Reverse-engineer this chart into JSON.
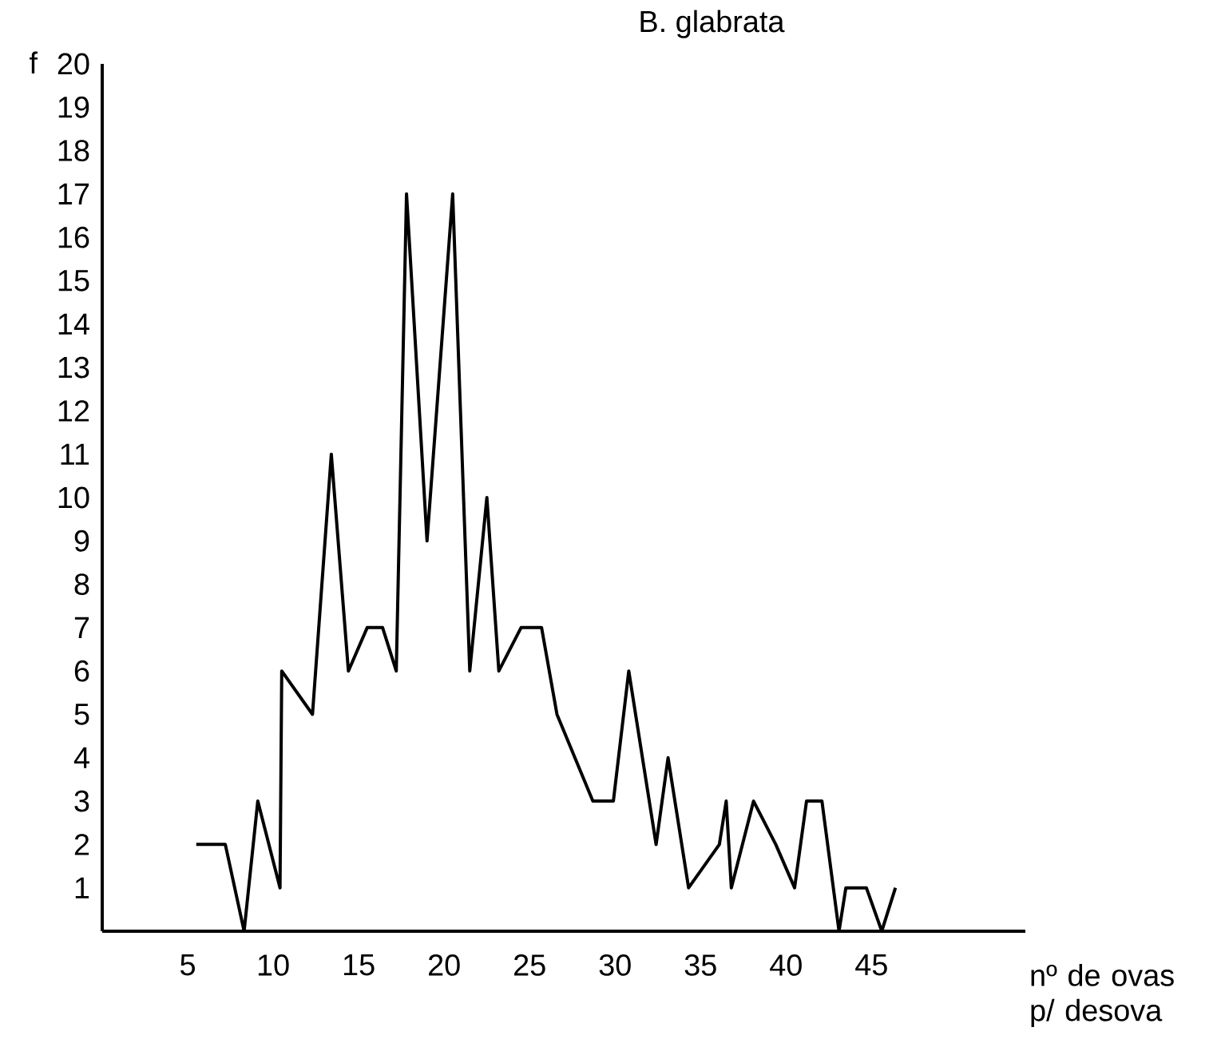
{
  "chart_data": {
    "type": "line",
    "title": "B. glabrata",
    "xlabel": "nº de ovas p/ desova",
    "ylabel": "f",
    "color": "#000000",
    "line_style": "solid",
    "x": [
      5.5,
      7.2,
      8.3,
      9.1,
      10.4,
      10.5,
      12.3,
      13.4,
      14.4,
      15.5,
      16.4,
      17.2,
      17.8,
      19,
      20.5,
      21.5,
      22.5,
      23.2,
      24.5,
      25.7,
      26.6,
      28.7,
      29.9,
      30.8,
      32.4,
      33.1,
      34.3,
      36.1,
      36.5,
      36.8,
      38.1,
      39.4,
      40.5,
      41.2,
      42.1,
      43.1,
      43.5,
      44.7,
      45.6,
      46.4
    ],
    "values": [
      2,
      2,
      0,
      3,
      1,
      6,
      5,
      11,
      6,
      7,
      7,
      6,
      17,
      9,
      17,
      6,
      10,
      6,
      7,
      7,
      5,
      3,
      3,
      6,
      2,
      4,
      1,
      2,
      3,
      1,
      3,
      2,
      1,
      3,
      3,
      0,
      1,
      1,
      0,
      1
    ],
    "xlim": [
      0,
      54
    ],
    "ylim": [
      0,
      20
    ],
    "xticks": [
      5,
      10,
      15,
      20,
      25,
      30,
      35,
      40,
      45
    ],
    "yticks": [
      1,
      2,
      3,
      4,
      5,
      6,
      7,
      8,
      9,
      10,
      11,
      12,
      13,
      14,
      15,
      16,
      17,
      18,
      19,
      20
    ]
  }
}
